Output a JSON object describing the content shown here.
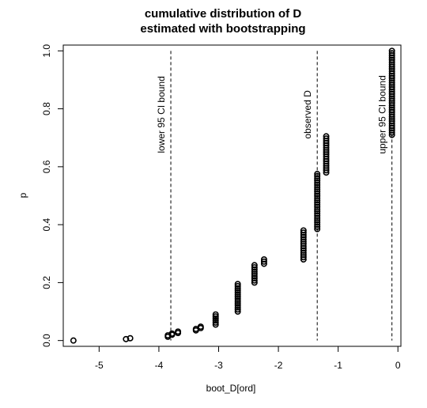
{
  "chart_data": {
    "type": "scatter",
    "title": "cumulative distribution of D",
    "subtitle": "estimated with bootstrapping",
    "xlabel": "boot_D[ord]",
    "ylabel": "p",
    "xlim": [
      -5.6,
      0.05
    ],
    "ylim": [
      -0.02,
      1.02
    ],
    "x_ticks": [
      -5,
      -4,
      -3,
      -2,
      -1,
      0
    ],
    "y_ticks": [
      0.0,
      0.2,
      0.4,
      0.6,
      0.8,
      1.0
    ],
    "x_tick_labels": [
      "-5",
      "-4",
      "-3",
      "-2",
      "-1",
      "0"
    ],
    "y_tick_labels": [
      "0.0",
      "0.2",
      "0.4",
      "0.6",
      "0.8",
      "1.0"
    ],
    "marker": "open-circle",
    "grid": false,
    "clusters": [
      {
        "x": -5.43,
        "p_from": 0.0,
        "p_to": 0.0,
        "n": 1
      },
      {
        "x": -4.55,
        "p_from": 0.005,
        "p_to": 0.005,
        "n": 1
      },
      {
        "x": -4.48,
        "p_from": 0.008,
        "p_to": 0.008,
        "n": 1
      },
      {
        "x": -3.85,
        "p_from": 0.013,
        "p_to": 0.018,
        "n": 2
      },
      {
        "x": -3.78,
        "p_from": 0.02,
        "p_to": 0.024,
        "n": 2
      },
      {
        "x": -3.68,
        "p_from": 0.026,
        "p_to": 0.031,
        "n": 2
      },
      {
        "x": -3.38,
        "p_from": 0.035,
        "p_to": 0.04,
        "n": 2
      },
      {
        "x": -3.3,
        "p_from": 0.043,
        "p_to": 0.048,
        "n": 2
      },
      {
        "x": -3.05,
        "p_from": 0.055,
        "p_to": 0.09,
        "n": 6
      },
      {
        "x": -2.68,
        "p_from": 0.1,
        "p_to": 0.195,
        "n": 14
      },
      {
        "x": -2.4,
        "p_from": 0.2,
        "p_to": 0.26,
        "n": 9
      },
      {
        "x": -2.24,
        "p_from": 0.265,
        "p_to": 0.28,
        "n": 3
      },
      {
        "x": -1.58,
        "p_from": 0.28,
        "p_to": 0.38,
        "n": 14
      },
      {
        "x": -1.35,
        "p_from": 0.385,
        "p_to": 0.575,
        "n": 26
      },
      {
        "x": -1.2,
        "p_from": 0.58,
        "p_to": 0.705,
        "n": 17
      },
      {
        "x": -0.1,
        "p_from": 0.71,
        "p_to": 1.0,
        "n": 38
      }
    ],
    "reference_lines": [
      {
        "x": -3.8,
        "label": "lower 95 CI bound",
        "style": "dashed"
      },
      {
        "x": -1.35,
        "label": "observed D",
        "style": "dashed"
      },
      {
        "x": -0.1,
        "label": "upper 95 CI bound",
        "style": "dashed"
      }
    ]
  }
}
